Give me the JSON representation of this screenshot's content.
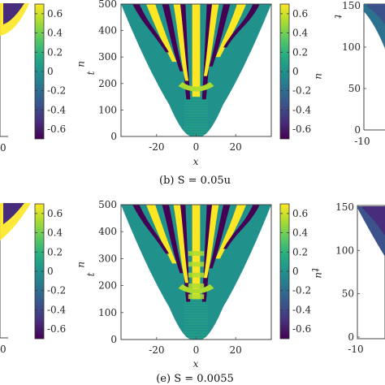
{
  "palette": [
    "#440154",
    "#472d7b",
    "#3b528b",
    "#2c728e",
    "#21918c",
    "#28ae80",
    "#5ec962",
    "#addc30",
    "#fde725"
  ],
  "chart_data": [
    {
      "type": "heatmap",
      "panel": "a",
      "caption": "",
      "variable": "u",
      "xlabel": "",
      "ylabel": "",
      "x_ticks_visible": [
        "0"
      ],
      "colorbar": {
        "label": "u",
        "range": [
          -0.7,
          0.7
        ],
        "ticks": [
          "0.6",
          "0.4",
          "0.2",
          "0",
          "-0.2",
          "-0.4",
          "-0.6"
        ]
      }
    },
    {
      "type": "heatmap",
      "panel": "b",
      "caption": "(b) S = 0.05u",
      "variable": "u",
      "xlabel": "x",
      "ylabel": "t",
      "xlim": [
        -38,
        38
      ],
      "ylim": [
        0,
        500
      ],
      "x_ticks": [
        "-20",
        "0",
        "20"
      ],
      "y_ticks": [
        "0",
        "100",
        "200",
        "300",
        "400",
        "500"
      ],
      "front_halfwidth_at_t500": 38,
      "stripe_pattern": "stationary branching bands",
      "colorbar": {
        "label": "u",
        "range": [
          -0.7,
          0.7
        ],
        "ticks": [
          "0.6",
          "0.4",
          "0.2",
          "0",
          "-0.2",
          "-0.4",
          "-0.6"
        ]
      }
    },
    {
      "type": "heatmap",
      "panel": "c",
      "caption": "",
      "xlabel": "",
      "ylabel": "t",
      "y_ticks": [
        "0",
        "50",
        "100",
        "150"
      ],
      "x_ticks_visible": [
        "-10"
      ]
    },
    {
      "type": "heatmap",
      "panel": "d",
      "caption": "",
      "variable": "u",
      "xlabel": "",
      "ylabel": "",
      "x_ticks_visible": [
        "0"
      ],
      "colorbar": {
        "label": "u",
        "range": [
          -0.7,
          0.7
        ],
        "ticks": [
          "0.6",
          "0.4",
          "0.2",
          "0",
          "-0.2",
          "-0.4",
          "-0.6"
        ]
      }
    },
    {
      "type": "heatmap",
      "panel": "e",
      "caption": "(e) S = 0.0055",
      "variable": "u",
      "xlabel": "x",
      "ylabel": "t",
      "xlim": [
        -38,
        38
      ],
      "ylim": [
        0,
        500
      ],
      "x_ticks": [
        "-20",
        "0",
        "20"
      ],
      "y_ticks": [
        "0",
        "100",
        "200",
        "300",
        "400",
        "500"
      ],
      "front_halfwidth_at_t500": 38,
      "stripe_pattern": "branching bands with zig-zag core",
      "colorbar": {
        "label": "u",
        "range": [
          -0.7,
          0.7
        ],
        "ticks": [
          "0.6",
          "0.4",
          "0.2",
          "0",
          "-0.2",
          "-0.4",
          "-0.6"
        ]
      }
    },
    {
      "type": "heatmap",
      "panel": "f",
      "caption": "",
      "xlabel": "",
      "ylabel": "t",
      "y_ticks": [
        "0",
        "50",
        "100",
        "150"
      ],
      "x_ticks_visible": [
        "-10"
      ]
    }
  ]
}
